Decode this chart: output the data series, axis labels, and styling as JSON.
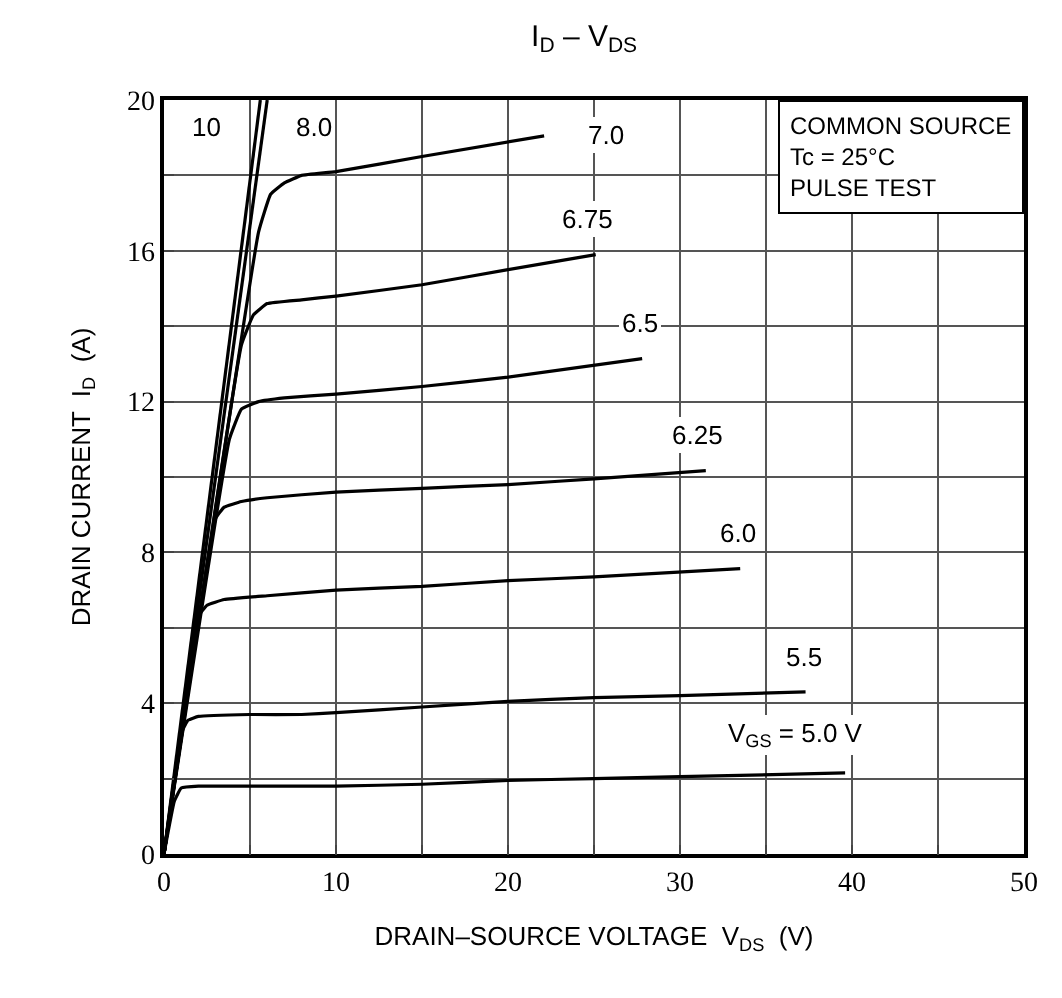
{
  "chart_data": {
    "type": "line",
    "title": "I$_{D}$ – V$_{DS}$",
    "xlabel": "DRAIN–SOURCE VOLTAGE  V$_{DS}$  (V)",
    "ylabel": "DRAIN CURRENT  I$_{D}$  (A)",
    "xlim": [
      0,
      50
    ],
    "ylim": [
      0,
      20
    ],
    "xticks": [
      0,
      {
        "value": 5,
        "label": null
      },
      10,
      {
        "value": 15,
        "label": null
      },
      20,
      {
        "value": 25,
        "label": null
      },
      30,
      {
        "value": 35,
        "label": null
      },
      40,
      {
        "value": 45,
        "label": null
      },
      50
    ],
    "yticks": [
      0,
      {
        "value": 2,
        "label": null
      },
      4,
      {
        "value": 6,
        "label": null
      },
      8,
      {
        "value": 10,
        "label": null
      },
      12,
      {
        "value": 14,
        "label": null
      },
      16,
      {
        "value": 18,
        "label": null
      },
      20
    ],
    "grid": true,
    "marker": "none",
    "line_style": "solid",
    "annotations": [
      "COMMON SOURCE\nTc = 25°C\nPULSE TEST"
    ],
    "series": [
      {
        "name": "10",
        "color": "#000000",
        "x": [
          0,
          5.6
        ],
        "values": [
          0,
          20
        ]
      },
      {
        "name": "8.0",
        "color": "#000000",
        "x": [
          0,
          6.0
        ],
        "values": [
          0,
          20
        ]
      },
      {
        "name": "7.0",
        "color": "#000000",
        "x": [
          0,
          5.5,
          6.2,
          7,
          8,
          10,
          15,
          22.1
        ],
        "values": [
          0,
          16.5,
          17.5,
          17.8,
          18.0,
          18.1,
          18.5,
          19.05
        ]
      },
      {
        "name": "6.75",
        "color": "#000000",
        "x": [
          0,
          4.5,
          5.2,
          6,
          8,
          10,
          15,
          20,
          25.1
        ],
        "values": [
          0,
          13.5,
          14.3,
          14.6,
          14.7,
          14.8,
          15.1,
          15.5,
          15.9
        ]
      },
      {
        "name": "6.5",
        "color": "#000000",
        "x": [
          0,
          3.8,
          4.5,
          5.5,
          7,
          10,
          15,
          20,
          27.8
        ],
        "values": [
          0,
          11.0,
          11.8,
          12.0,
          12.1,
          12.2,
          12.4,
          12.65,
          13.14
        ]
      },
      {
        "name": "6.25",
        "color": "#000000",
        "x": [
          0,
          3.0,
          3.5,
          4.5,
          6,
          10,
          15,
          20,
          25,
          31.5
        ],
        "values": [
          0,
          8.9,
          9.2,
          9.35,
          9.45,
          9.6,
          9.7,
          9.8,
          9.95,
          10.17
        ]
      },
      {
        "name": "6.0",
        "color": "#000000",
        "x": [
          0,
          2.0,
          2.5,
          3.5,
          6,
          10,
          15,
          20,
          25,
          33.5
        ],
        "values": [
          0,
          6.3,
          6.6,
          6.75,
          6.85,
          7.0,
          7.1,
          7.25,
          7.35,
          7.57
        ]
      },
      {
        "name": "5.5",
        "color": "#000000",
        "x": [
          0,
          1.1,
          1.4,
          2,
          5,
          8,
          10,
          15,
          20,
          25,
          30,
          37.3
        ],
        "values": [
          0,
          3.3,
          3.55,
          3.65,
          3.7,
          3.7,
          3.75,
          3.9,
          4.05,
          4.15,
          4.2,
          4.3
        ]
      },
      {
        "name": "V$_{GS}$ = 5.0 V",
        "color": "#000000",
        "x": [
          0,
          0.6,
          1.0,
          2,
          5,
          10,
          15,
          20,
          25,
          30,
          39.6
        ],
        "values": [
          0,
          1.4,
          1.75,
          1.8,
          1.8,
          1.8,
          1.85,
          1.95,
          2.0,
          2.05,
          2.15
        ]
      }
    ]
  }
}
